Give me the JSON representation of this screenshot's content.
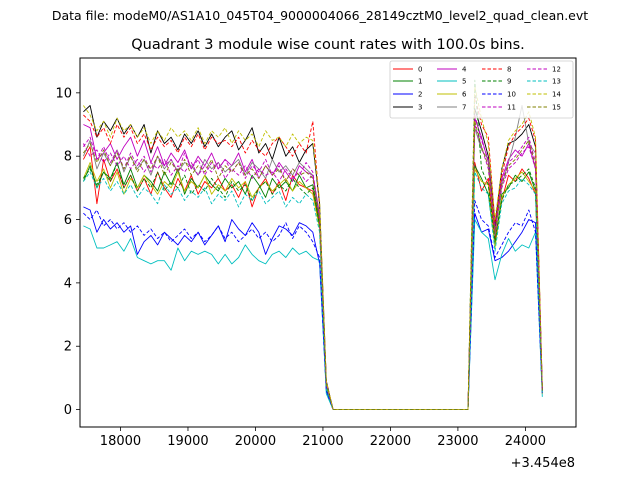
{
  "chart_data": {
    "type": "line",
    "suptitle": "Data file: modeM0/AS1A10_045T04_9000004066_28149cztM0_level2_quad_clean.evt",
    "title": "Quadrant 3 module wise count rates with 100.0s bins.",
    "xlabel": "",
    "ylabel": "",
    "x_offset_label": "+3.454e8",
    "xlim": [
      17400,
      24750
    ],
    "ylim": [
      -0.55,
      11.1
    ],
    "xticks": [
      18000,
      19000,
      20000,
      21000,
      22000,
      23000,
      24000
    ],
    "xtick_labels": [
      "18000",
      "19000",
      "20000",
      "21000",
      "22000",
      "23000",
      "24000"
    ],
    "yticks": [
      0,
      2,
      4,
      6,
      8,
      10
    ],
    "ytick_labels": [
      "0",
      "2",
      "4",
      "6",
      "8",
      "10"
    ],
    "grid": false,
    "legend_position": "top-right",
    "x_start": 17450,
    "x_step": 100,
    "gap_start": 21150,
    "gap_end": 23150,
    "gap_value": 0,
    "series": [
      {
        "name": "0",
        "color": "#ff0000",
        "dash": "solid",
        "seg1": [
          7.9,
          8.3,
          6.5,
          7.9,
          7.2,
          7.6,
          7.0,
          7.4,
          6.9,
          7.3,
          6.8,
          7.5,
          7.0,
          6.7,
          7.3,
          6.9,
          7.4,
          6.8,
          7.2,
          7.0,
          7.3,
          6.9,
          7.1,
          6.7,
          7.2,
          6.4,
          7.0,
          7.3,
          6.8,
          7.2,
          6.6,
          7.4,
          7.1,
          7.0,
          6.9,
          5.8,
          0.8
        ],
        "seg2": [
          7.8,
          6.9,
          7.3,
          5.4,
          6.6,
          7.4,
          7.2,
          7.6,
          7.3,
          6.8,
          0.6
        ]
      },
      {
        "name": "1",
        "color": "#008000",
        "dash": "solid",
        "seg1": [
          7.2,
          7.7,
          7.0,
          7.5,
          7.3,
          7.8,
          7.1,
          7.6,
          7.0,
          7.4,
          7.2,
          6.9,
          7.5,
          7.1,
          7.6,
          6.8,
          7.3,
          7.0,
          7.4,
          7.1,
          6.9,
          7.3,
          7.0,
          7.2,
          6.8,
          7.4,
          7.1,
          6.7,
          7.3,
          7.0,
          7.2,
          6.9,
          7.4,
          7.0,
          7.1,
          5.9,
          0.8
        ],
        "seg2": [
          7.7,
          7.3,
          6.8,
          5.2,
          6.8,
          7.0,
          7.4,
          7.2,
          7.5,
          6.9,
          0.6
        ]
      },
      {
        "name": "2",
        "color": "#0000ff",
        "dash": "solid",
        "seg1": [
          6.4,
          6.3,
          5.6,
          6.0,
          5.7,
          5.9,
          5.6,
          5.8,
          4.9,
          5.3,
          5.5,
          5.2,
          5.6,
          5.4,
          5.2,
          5.5,
          5.3,
          5.6,
          5.2,
          5.5,
          5.8,
          5.3,
          6.0,
          5.7,
          5.5,
          5.9,
          5.6,
          4.9,
          5.4,
          5.8,
          5.7,
          5.5,
          5.9,
          5.8,
          5.6,
          4.6,
          0.6
        ],
        "seg2": [
          6.2,
          5.6,
          5.7,
          4.7,
          4.8,
          5.0,
          5.3,
          5.6,
          6.0,
          5.9,
          0.5
        ]
      },
      {
        "name": "3",
        "color": "#000000",
        "dash": "solid",
        "seg1": [
          9.4,
          9.6,
          8.6,
          9.1,
          8.8,
          9.2,
          8.7,
          9.0,
          8.6,
          9.0,
          8.1,
          8.8,
          8.4,
          8.6,
          8.2,
          8.7,
          8.4,
          8.8,
          8.3,
          8.7,
          8.3,
          8.6,
          8.8,
          8.2,
          8.5,
          8.9,
          8.1,
          8.4,
          7.9,
          8.6,
          8.0,
          8.3,
          7.8,
          8.2,
          8.4,
          6.5,
          0.9
        ],
        "seg2": [
          9.5,
          8.8,
          8.0,
          5.8,
          7.6,
          8.4,
          8.5,
          8.7,
          9.0,
          8.3,
          0.7
        ]
      },
      {
        "name": "4",
        "color": "#bf00bf",
        "dash": "solid",
        "seg1": [
          9.0,
          8.9,
          7.9,
          8.1,
          8.4,
          7.9,
          8.3,
          8.6,
          8.0,
          8.5,
          7.8,
          8.3,
          7.7,
          8.1,
          7.8,
          8.2,
          7.6,
          8.0,
          7.7,
          8.1,
          7.6,
          7.9,
          7.7,
          8.1,
          7.5,
          7.9,
          7.3,
          7.7,
          7.4,
          7.8,
          7.5,
          7.2,
          7.7,
          7.5,
          7.4,
          6.0,
          0.8
        ],
        "seg2": [
          9.2,
          8.6,
          7.8,
          5.6,
          7.3,
          7.9,
          8.2,
          8.0,
          8.4,
          7.6,
          0.6
        ]
      },
      {
        "name": "5",
        "color": "#00bfbf",
        "dash": "solid",
        "seg1": [
          5.8,
          5.7,
          5.1,
          5.1,
          5.2,
          5.3,
          5.0,
          5.4,
          4.8,
          4.7,
          4.6,
          4.7,
          4.7,
          4.4,
          5.1,
          4.7,
          5.0,
          4.9,
          5.0,
          4.9,
          4.6,
          4.9,
          4.6,
          4.8,
          5.2,
          4.9,
          4.7,
          4.6,
          4.9,
          5.0,
          4.8,
          5.1,
          4.9,
          5.0,
          4.8,
          4.7,
          0.5
        ],
        "seg2": [
          6.0,
          5.6,
          5.4,
          4.1,
          4.9,
          5.4,
          5.0,
          5.2,
          5.1,
          5.6,
          0.4
        ]
      },
      {
        "name": "6",
        "color": "#bfbf00",
        "dash": "solid",
        "seg1": [
          7.3,
          7.8,
          7.2,
          7.6,
          7.0,
          7.5,
          6.8,
          7.3,
          7.0,
          7.4,
          7.1,
          6.8,
          7.2,
          7.0,
          7.5,
          6.9,
          7.2,
          7.0,
          7.4,
          6.8,
          7.1,
          6.9,
          7.3,
          7.0,
          7.2,
          6.7,
          7.0,
          7.2,
          6.9,
          7.1,
          7.3,
          6.9,
          7.2,
          7.0,
          6.8,
          5.7,
          0.7
        ],
        "seg2": [
          7.6,
          7.2,
          7.1,
          5.1,
          6.7,
          7.1,
          7.3,
          7.5,
          7.2,
          6.9,
          0.5
        ]
      },
      {
        "name": "7",
        "color": "#808080",
        "dash": "solid",
        "seg1": [
          8.0,
          8.5,
          7.6,
          8.1,
          7.7,
          8.2,
          7.5,
          8.0,
          7.6,
          7.9,
          7.4,
          8.0,
          7.6,
          7.9,
          7.5,
          7.8,
          7.7,
          7.4,
          7.9,
          7.6,
          7.8,
          7.5,
          7.7,
          7.9,
          7.4,
          7.8,
          7.6,
          7.3,
          7.9,
          7.5,
          7.7,
          7.4,
          7.8,
          7.6,
          7.4,
          6.2,
          0.8
        ],
        "seg2": [
          8.9,
          8.2,
          7.9,
          5.5,
          7.1,
          7.8,
          8.6,
          9.6,
          8.4,
          8.1,
          0.6
        ]
      },
      {
        "name": "8",
        "color": "#ff0000",
        "dash": "dashed",
        "seg1": [
          9.3,
          9.1,
          8.6,
          8.9,
          8.4,
          9.0,
          8.6,
          8.9,
          8.4,
          8.7,
          8.2,
          8.6,
          8.3,
          8.5,
          8.1,
          8.6,
          8.3,
          8.7,
          8.2,
          8.6,
          8.4,
          8.5,
          8.3,
          8.6,
          8.1,
          8.5,
          8.2,
          8.0,
          8.4,
          8.6,
          8.3,
          8.0,
          8.4,
          8.1,
          9.1,
          6.4,
          0.9
        ],
        "seg2": [
          9.9,
          9.0,
          8.6,
          5.9,
          7.4,
          8.3,
          8.7,
          8.9,
          9.2,
          8.5,
          0.7
        ]
      },
      {
        "name": "9",
        "color": "#008000",
        "dash": "dashed",
        "seg1": [
          7.3,
          7.6,
          7.1,
          7.5,
          7.2,
          7.8,
          7.0,
          7.4,
          6.9,
          7.3,
          7.0,
          7.5,
          6.9,
          7.2,
          7.0,
          7.4,
          6.8,
          7.1,
          6.9,
          7.3,
          7.0,
          6.7,
          7.2,
          6.9,
          7.1,
          6.6,
          7.0,
          7.2,
          6.8,
          7.1,
          6.9,
          7.3,
          7.0,
          6.8,
          7.0,
          5.8,
          0.7
        ],
        "seg2": [
          10.4,
          7.6,
          7.1,
          5.3,
          6.6,
          7.1,
          7.2,
          7.4,
          7.6,
          7.0,
          0.6
        ]
      },
      {
        "name": "10",
        "color": "#0000ff",
        "dash": "dashed",
        "seg1": [
          6.2,
          6.0,
          6.3,
          5.8,
          6.0,
          5.7,
          5.9,
          5.6,
          5.8,
          5.5,
          5.7,
          5.4,
          5.6,
          5.3,
          5.5,
          5.7,
          5.4,
          5.6,
          5.3,
          5.5,
          5.8,
          5.4,
          5.6,
          5.3,
          5.5,
          5.7,
          5.4,
          5.6,
          5.3,
          5.5,
          5.9,
          5.4,
          5.8,
          5.6,
          5.3,
          4.8,
          0.6
        ],
        "seg2": [
          6.6,
          6.0,
          5.8,
          4.8,
          5.2,
          5.6,
          5.9,
          5.8,
          6.3,
          5.6,
          0.5
        ]
      },
      {
        "name": "11",
        "color": "#bf00bf",
        "dash": "dashed",
        "seg1": [
          8.3,
          8.6,
          7.9,
          8.3,
          7.8,
          8.2,
          7.6,
          8.1,
          7.7,
          8.0,
          7.5,
          8.0,
          7.7,
          7.9,
          7.5,
          8.1,
          7.6,
          7.9,
          7.4,
          7.8,
          7.6,
          7.9,
          7.5,
          7.8,
          7.3,
          7.7,
          7.5,
          7.9,
          7.4,
          7.7,
          7.2,
          7.6,
          7.4,
          7.8,
          7.5,
          6.1,
          0.8
        ],
        "seg2": [
          9.3,
          8.5,
          7.9,
          5.7,
          7.2,
          7.8,
          8.0,
          8.3,
          8.6,
          7.8,
          0.6
        ]
      },
      {
        "name": "12",
        "color": "#bf00bf",
        "dash": "dashed",
        "seg1": [
          8.4,
          8.0,
          8.2,
          7.8,
          8.1,
          7.7,
          8.0,
          7.6,
          7.9,
          7.5,
          7.8,
          7.6,
          7.9,
          7.4,
          7.7,
          7.5,
          7.8,
          7.4,
          7.7,
          7.5,
          7.8,
          7.3,
          7.6,
          7.4,
          7.7,
          7.3,
          7.6,
          7.4,
          7.5,
          7.2,
          7.6,
          7.3,
          7.5,
          7.2,
          7.4,
          6.0,
          0.8
        ],
        "seg2": [
          9.0,
          8.3,
          7.6,
          5.6,
          7.0,
          7.6,
          7.8,
          8.1,
          8.3,
          7.6,
          0.6
        ]
      },
      {
        "name": "13",
        "color": "#00bfbf",
        "dash": "dashed",
        "seg1": [
          7.2,
          7.5,
          7.0,
          7.3,
          6.9,
          7.2,
          6.8,
          7.1,
          6.7,
          7.0,
          6.8,
          6.5,
          7.1,
          6.8,
          7.0,
          6.6,
          6.9,
          6.7,
          7.0,
          6.5,
          6.8,
          6.6,
          6.9,
          6.4,
          6.8,
          6.6,
          6.9,
          6.5,
          6.7,
          6.9,
          6.4,
          6.7,
          6.5,
          6.8,
          6.6,
          5.6,
          0.7
        ],
        "seg2": [
          7.5,
          7.0,
          6.8,
          5.0,
          6.5,
          6.9,
          7.0,
          7.3,
          7.1,
          6.8,
          0.5
        ]
      },
      {
        "name": "14",
        "color": "#bfbf00",
        "dash": "dashed",
        "seg1": [
          9.6,
          9.3,
          8.8,
          9.1,
          8.6,
          9.2,
          8.8,
          9.0,
          8.6,
          8.9,
          8.4,
          8.8,
          8.5,
          8.9,
          8.6,
          8.8,
          8.5,
          8.9,
          8.4,
          8.8,
          8.6,
          8.9,
          8.4,
          8.8,
          8.5,
          8.7,
          8.3,
          8.8,
          8.5,
          8.6,
          8.3,
          8.7,
          8.4,
          8.6,
          8.5,
          6.6,
          0.9
        ],
        "seg2": [
          10.2,
          9.2,
          8.4,
          6.0,
          7.6,
          8.5,
          8.8,
          9.0,
          9.4,
          8.6,
          0.7
        ]
      },
      {
        "name": "15",
        "color": "#808000",
        "dash": "dashed",
        "seg1": [
          8.1,
          8.4,
          7.8,
          8.2,
          7.7,
          8.1,
          7.6,
          8.0,
          7.5,
          7.9,
          7.6,
          8.0,
          7.4,
          7.8,
          7.5,
          7.9,
          7.4,
          7.7,
          7.5,
          7.9,
          7.3,
          7.7,
          7.5,
          7.8,
          7.4,
          7.6,
          7.3,
          7.7,
          7.4,
          7.6,
          7.2,
          7.6,
          7.4,
          7.5,
          7.3,
          6.0,
          0.8
        ],
        "seg2": [
          9.1,
          8.3,
          7.7,
          5.6,
          7.1,
          7.7,
          7.9,
          8.2,
          8.5,
          7.7,
          0.6
        ]
      }
    ]
  }
}
